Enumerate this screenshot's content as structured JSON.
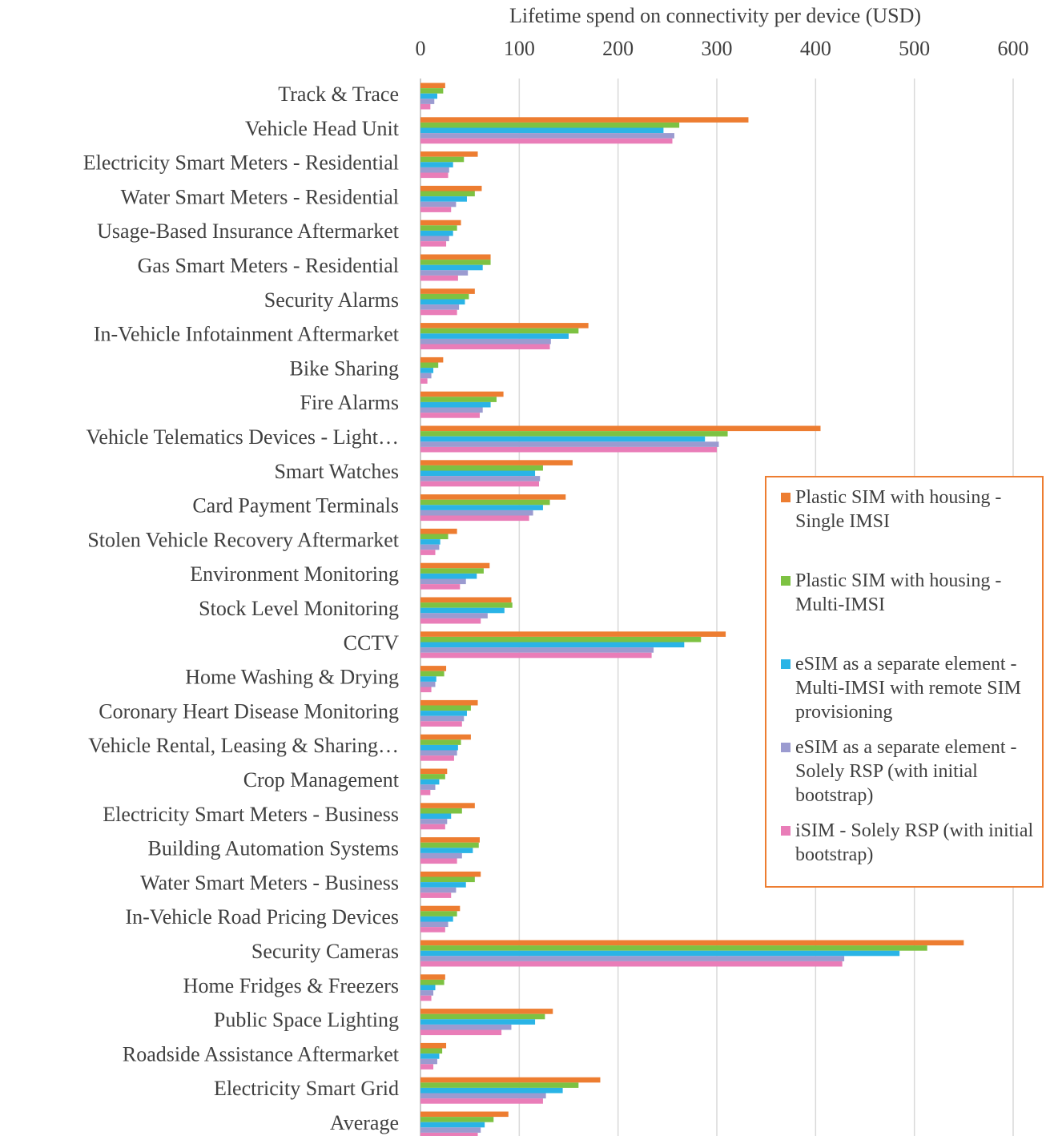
{
  "chart_data": {
    "type": "hbar",
    "title": "Lifetime spend on connectivity per device (USD)",
    "categories": [
      "Track & Trace",
      "Vehicle Head Unit",
      "Electricity Smart Meters - Residential",
      "Water Smart Meters - Residential",
      "Usage-Based Insurance Aftermarket",
      "Gas Smart Meters - Residential",
      "Security Alarms",
      "In-Vehicle Infotainment Aftermarket",
      "Bike Sharing",
      "Fire Alarms",
      "Vehicle Telematics Devices - Light…",
      "Smart Watches",
      "Card Payment Terminals",
      "Stolen Vehicle Recovery Aftermarket",
      "Environment Monitoring",
      "Stock Level Monitoring",
      "CCTV",
      "Home Washing & Drying",
      "Coronary Heart Disease Monitoring",
      "Vehicle Rental, Leasing & Sharing…",
      "Crop Management",
      "Electricity Smart Meters - Business",
      "Building Automation Systems",
      "Water Smart Meters - Business",
      "In-Vehicle Road Pricing Devices",
      "Security Cameras",
      "Home Fridges & Freezers",
      "Public Space Lighting",
      "Roadside Assistance Aftermarket",
      "Electricity Smart Grid",
      "Average"
    ],
    "series": [
      {
        "name": "Plastic SIM with housing - Single IMSI",
        "color": "#ED7D31",
        "values": [
          25,
          332,
          58,
          62,
          41,
          71,
          55,
          170,
          23,
          84,
          405,
          154,
          147,
          37,
          70,
          92,
          309,
          26,
          58,
          51,
          27,
          55,
          60,
          61,
          40,
          550,
          25,
          134,
          26,
          182,
          89
        ]
      },
      {
        "name": "Plastic SIM with housing - Multi-IMSI",
        "color": "#7DC242",
        "values": [
          23,
          262,
          44,
          55,
          37,
          71,
          49,
          160,
          18,
          77,
          311,
          124,
          131,
          28,
          64,
          93,
          284,
          24,
          51,
          41,
          25,
          42,
          59,
          55,
          37,
          513,
          24,
          126,
          22,
          160,
          74
        ]
      },
      {
        "name": "eSIM as a separate element - Multi-IMSI with remote SIM provisioning",
        "color": "#2AB4E6",
        "values": [
          17,
          246,
          33,
          47,
          33,
          63,
          45,
          150,
          13,
          71,
          288,
          116,
          124,
          20,
          57,
          85,
          267,
          16,
          47,
          38,
          19,
          31,
          53,
          46,
          33,
          485,
          15,
          116,
          19,
          144,
          65
        ]
      },
      {
        "name": "eSIM as a separate element - Solely RSP (with initial bootstrap)",
        "color": "#9B9BD0",
        "values": [
          14,
          257,
          29,
          36,
          29,
          48,
          39,
          132,
          11,
          63,
          302,
          121,
          114,
          19,
          46,
          68,
          236,
          15,
          44,
          37,
          15,
          27,
          42,
          36,
          28,
          429,
          13,
          92,
          17,
          127,
          61
        ]
      },
      {
        "name": "iSIM - Solely RSP (with initial bootstrap)",
        "color": "#E97DB8",
        "values": [
          10,
          255,
          28,
          31,
          26,
          38,
          37,
          131,
          7,
          60,
          300,
          120,
          110,
          15,
          40,
          61,
          234,
          11,
          42,
          34,
          10,
          25,
          37,
          31,
          25,
          427,
          11,
          82,
          13,
          124,
          58
        ]
      }
    ],
    "xlim": [
      0,
      600
    ],
    "xticks": [
      0,
      100,
      200,
      300,
      400,
      500,
      600
    ],
    "grid": true
  }
}
